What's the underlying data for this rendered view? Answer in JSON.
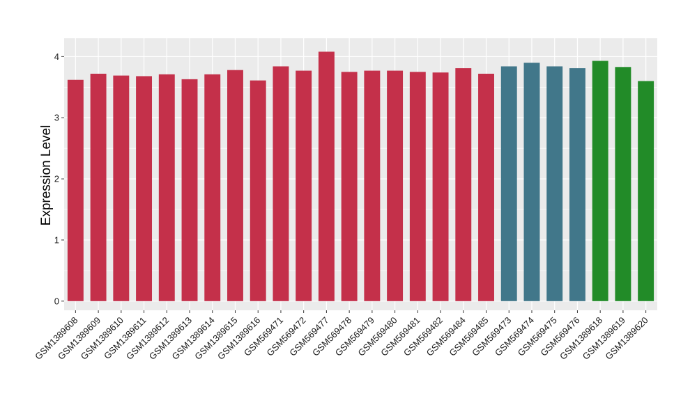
{
  "chart_data": {
    "type": "bar",
    "title": "",
    "xlabel": "",
    "ylabel": "Expression Level",
    "ylim": [
      -0.15,
      4.3
    ],
    "yticks": [
      0,
      1,
      2,
      3,
      4
    ],
    "grid": true,
    "legend": "none",
    "categories": [
      "GSM1389608",
      "GSM1389609",
      "GSM1389610",
      "GSM1389611",
      "GSM1389612",
      "GSM1389613",
      "GSM1389614",
      "GSM1389615",
      "GSM1389616",
      "GSM569471",
      "GSM569472",
      "GSM569477",
      "GSM569478",
      "GSM569479",
      "GSM569480",
      "GSM569481",
      "GSM569482",
      "GSM569484",
      "GSM569485",
      "GSM569473",
      "GSM569474",
      "GSM569475",
      "GSM569476",
      "GSM1389618",
      "GSM1389619",
      "GSM1389620"
    ],
    "values": [
      3.62,
      3.72,
      3.69,
      3.68,
      3.71,
      3.63,
      3.71,
      3.78,
      3.61,
      3.84,
      3.77,
      4.08,
      3.75,
      3.77,
      3.77,
      3.75,
      3.74,
      3.81,
      3.72,
      3.84,
      3.9,
      3.84,
      3.81,
      3.93,
      3.83,
      3.6
    ],
    "colors": [
      "#C4304A",
      "#C4304A",
      "#C4304A",
      "#C4304A",
      "#C4304A",
      "#C4304A",
      "#C4304A",
      "#C4304A",
      "#C4304A",
      "#C4304A",
      "#C4304A",
      "#C4304A",
      "#C4304A",
      "#C4304A",
      "#C4304A",
      "#C4304A",
      "#C4304A",
      "#C4304A",
      "#C4304A",
      "#41778A",
      "#41778A",
      "#41778A",
      "#41778A",
      "#228B28",
      "#228B28",
      "#228B28"
    ],
    "panel_background": "#EBEBEB",
    "grid_color": "#FFFFFF"
  }
}
